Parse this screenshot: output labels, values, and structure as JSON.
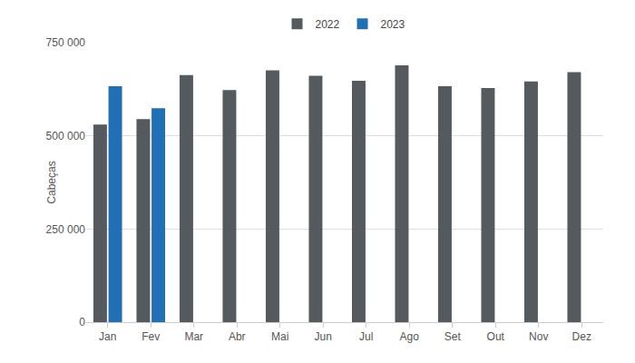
{
  "chart_data": {
    "type": "bar",
    "y_label": "Cabeças",
    "categories": [
      "Jan",
      "Fev",
      "Mar",
      "Abr",
      "Mai",
      "Jun",
      "Jul",
      "Ago",
      "Set",
      "Out",
      "Nov",
      "Dez"
    ],
    "series": [
      {
        "name": "2022",
        "color": "#555a5f",
        "values": [
          530000,
          545000,
          663000,
          623000,
          676000,
          661000,
          648000,
          689000,
          633000,
          628000,
          646000,
          671000
        ]
      },
      {
        "name": "2023",
        "color": "#2170b5",
        "values": [
          633000,
          574000,
          null,
          null,
          null,
          null,
          null,
          null,
          null,
          null,
          null,
          null
        ]
      }
    ],
    "ylim": [
      0,
      750000
    ],
    "yticks": [
      0,
      {
        "value": 250000,
        "label": "250 000"
      },
      {
        "value": 500000,
        "label": "500 000"
      },
      {
        "value": 750000,
        "label": "750 000"
      }
    ],
    "grid": true,
    "legend": "top"
  }
}
